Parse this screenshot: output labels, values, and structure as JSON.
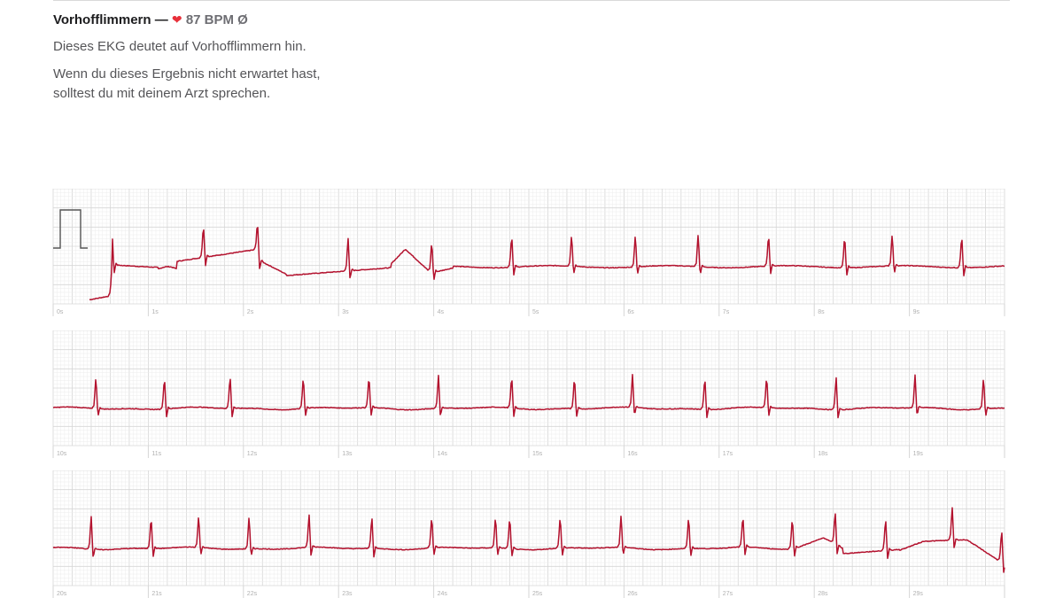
{
  "header": {
    "diagnosis": "Vorhofflimmern",
    "separator": "—",
    "heart_icon": "heart-icon",
    "heart_color": "#e8303a",
    "bpm": "87 BPM",
    "average_symbol": "Ø",
    "description": "Dieses EKG deutet auf Vorhofflimmern hin.",
    "advice": "Wenn du dieses Ergebnis nicht erwartet hast, solltest du mit deinem Arzt sprechen."
  },
  "colors": {
    "trace": "#b3122e",
    "grid_minor": "#ececec",
    "grid_major": "#d6d6d6",
    "tick_label": "#b0b0b0"
  },
  "strips": [
    {
      "labels": [
        "0s",
        "1s",
        "2s",
        "3s",
        "4s",
        "5s",
        "6s",
        "7s",
        "8s",
        "9s"
      ]
    },
    {
      "labels": [
        "10s",
        "11s",
        "12s",
        "13s",
        "14s",
        "15s",
        "16s",
        "17s",
        "18s",
        "19s"
      ]
    },
    {
      "labels": [
        "20s",
        "21s",
        "22s",
        "23s",
        "24s",
        "25s",
        "26s",
        "27s",
        "28s",
        "29s"
      ]
    }
  ]
}
